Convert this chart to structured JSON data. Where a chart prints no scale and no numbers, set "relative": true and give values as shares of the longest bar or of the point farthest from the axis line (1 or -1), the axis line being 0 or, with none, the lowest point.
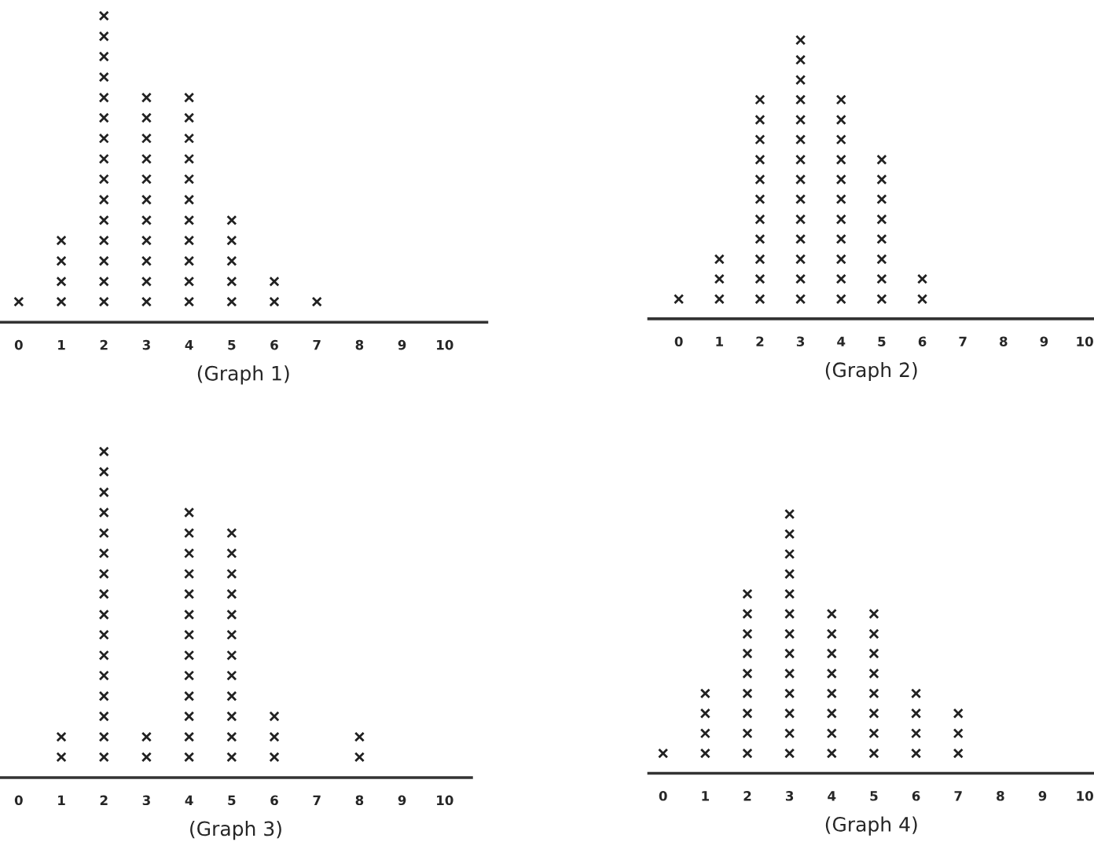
{
  "chart_data": [
    {
      "type": "scatter",
      "xlabel": "(Graph 1)",
      "relative": true,
      "xlim": [
        -0.44,
        10.99
      ],
      "xticks": [
        0,
        1,
        2,
        3,
        4,
        5,
        6,
        7,
        8,
        9,
        10
      ],
      "marker": "cross",
      "tick_labels": "x",
      "series": [
        {
          "color": "#222222",
          "x": [
            0,
            1,
            1,
            1,
            1,
            2,
            2,
            2,
            2,
            2,
            2,
            2,
            2,
            2,
            2,
            2,
            2,
            2,
            2,
            2,
            3,
            3,
            3,
            3,
            3,
            3,
            3,
            3,
            3,
            3,
            3,
            4,
            4,
            4,
            4,
            4,
            4,
            4,
            4,
            4,
            4,
            4,
            5,
            5,
            5,
            5,
            5,
            6,
            6,
            7
          ],
          "values": [
            0.067,
            0.067,
            0.133,
            0.2,
            0.267,
            0.067,
            0.133,
            0.2,
            0.267,
            0.333,
            0.4,
            0.467,
            0.533,
            0.6,
            0.667,
            0.733,
            0.8,
            0.867,
            0.933,
            1,
            0.067,
            0.133,
            0.2,
            0.267,
            0.333,
            0.4,
            0.467,
            0.533,
            0.6,
            0.667,
            0.733,
            0.067,
            0.133,
            0.2,
            0.267,
            0.333,
            0.4,
            0.467,
            0.533,
            0.6,
            0.667,
            0.733,
            0.067,
            0.133,
            0.2,
            0.267,
            0.333,
            0.067,
            0.133,
            0.067
          ]
        }
      ]
    },
    {
      "type": "scatter",
      "xlabel": "(Graph 2)",
      "relative": true,
      "xlim": [
        -0.74,
        10.23
      ],
      "xticks": [
        0,
        1,
        2,
        3,
        4,
        5,
        6,
        7,
        8,
        9,
        10
      ],
      "marker": "cross",
      "tick_labels": "x",
      "series": [
        {
          "color": "#222222",
          "x": [
            0,
            1,
            1,
            1,
            2,
            2,
            2,
            2,
            2,
            2,
            2,
            2,
            2,
            2,
            2,
            3,
            3,
            3,
            3,
            3,
            3,
            3,
            3,
            3,
            3,
            3,
            3,
            3,
            3,
            4,
            4,
            4,
            4,
            4,
            4,
            4,
            4,
            4,
            4,
            4,
            5,
            5,
            5,
            5,
            5,
            5,
            5,
            5,
            6,
            6
          ],
          "values": [
            0.071,
            0.071,
            0.143,
            0.214,
            0.071,
            0.143,
            0.214,
            0.286,
            0.357,
            0.429,
            0.5,
            0.571,
            0.643,
            0.714,
            0.786,
            0.071,
            0.143,
            0.214,
            0.286,
            0.357,
            0.429,
            0.5,
            0.571,
            0.643,
            0.714,
            0.786,
            0.857,
            0.929,
            1,
            0.071,
            0.143,
            0.214,
            0.286,
            0.357,
            0.429,
            0.5,
            0.571,
            0.643,
            0.714,
            0.786,
            0.071,
            0.143,
            0.214,
            0.286,
            0.357,
            0.429,
            0.5,
            0.571,
            0.071,
            0.143
          ]
        }
      ]
    },
    {
      "type": "scatter",
      "xlabel": "(Graph 3)",
      "relative": true,
      "xlim": [
        -0.44,
        10.63
      ],
      "xticks": [
        0,
        1,
        2,
        3,
        4,
        5,
        6,
        7,
        8,
        9,
        10
      ],
      "marker": "cross",
      "tick_labels": "x",
      "series": [
        {
          "color": "#222222",
          "x": [
            1,
            1,
            2,
            2,
            2,
            2,
            2,
            2,
            2,
            2,
            2,
            2,
            2,
            2,
            2,
            2,
            2,
            2,
            3,
            3,
            4,
            4,
            4,
            4,
            4,
            4,
            4,
            4,
            4,
            4,
            4,
            4,
            4,
            5,
            5,
            5,
            5,
            5,
            5,
            5,
            5,
            5,
            5,
            5,
            5,
            6,
            6,
            6,
            8,
            8
          ],
          "values": [
            0.063,
            0.125,
            0.063,
            0.125,
            0.188,
            0.25,
            0.313,
            0.375,
            0.438,
            0.5,
            0.563,
            0.625,
            0.688,
            0.75,
            0.813,
            0.875,
            0.938,
            1,
            0.063,
            0.125,
            0.063,
            0.125,
            0.188,
            0.25,
            0.313,
            0.375,
            0.438,
            0.5,
            0.563,
            0.625,
            0.688,
            0.75,
            0.813,
            0.063,
            0.125,
            0.188,
            0.25,
            0.313,
            0.375,
            0.438,
            0.5,
            0.563,
            0.625,
            0.688,
            0.75,
            0.063,
            0.125,
            0.188,
            0.063,
            0.125
          ]
        }
      ]
    },
    {
      "type": "scatter",
      "xlabel": "(Graph 4)",
      "relative": true,
      "xlim": [
        -0.34,
        10.22
      ],
      "xticks": [
        0,
        1,
        2,
        3,
        4,
        5,
        6,
        7,
        8,
        9,
        10
      ],
      "marker": "cross",
      "tick_labels": "x",
      "series": [
        {
          "color": "#222222",
          "x": [
            0,
            1,
            1,
            1,
            1,
            2,
            2,
            2,
            2,
            2,
            2,
            2,
            2,
            2,
            3,
            3,
            3,
            3,
            3,
            3,
            3,
            3,
            3,
            3,
            3,
            3,
            3,
            4,
            4,
            4,
            4,
            4,
            4,
            4,
            4,
            5,
            5,
            5,
            5,
            5,
            5,
            5,
            5,
            6,
            6,
            6,
            6,
            7,
            7,
            7
          ],
          "values": [
            0.077,
            0.077,
            0.154,
            0.231,
            0.308,
            0.077,
            0.154,
            0.231,
            0.308,
            0.385,
            0.462,
            0.538,
            0.615,
            0.692,
            0.077,
            0.154,
            0.231,
            0.308,
            0.385,
            0.462,
            0.538,
            0.615,
            0.692,
            0.769,
            0.846,
            0.923,
            1,
            0.077,
            0.154,
            0.231,
            0.308,
            0.385,
            0.462,
            0.538,
            0.615,
            0.077,
            0.154,
            0.231,
            0.308,
            0.385,
            0.462,
            0.538,
            0.615,
            0.077,
            0.154,
            0.231,
            0.308,
            0.077,
            0.154,
            0.231
          ]
        }
      ]
    }
  ]
}
